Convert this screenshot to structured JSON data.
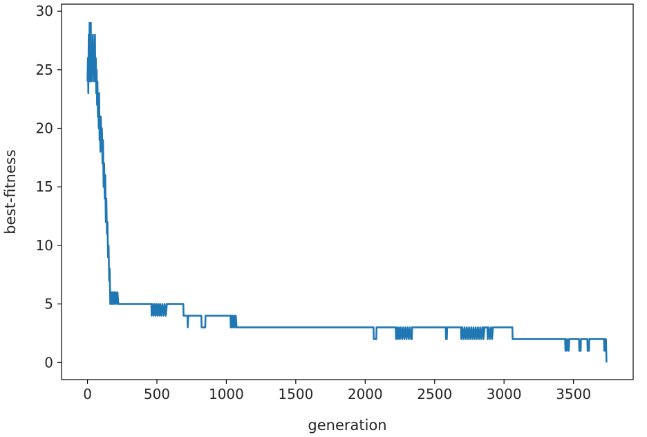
{
  "chart_data": {
    "type": "line",
    "title": "",
    "xlabel": "generation",
    "ylabel": "best-fitness",
    "xlim": [
      -187,
      3930
    ],
    "ylim": [
      -1.46,
      30.6
    ],
    "x_ticks": [
      0,
      500,
      1000,
      1500,
      2000,
      2500,
      3000,
      3500
    ],
    "x_tick_labels": [
      "0",
      "500",
      "1000",
      "1500",
      "2000",
      "2500",
      "3000",
      "3500"
    ],
    "y_ticks": [
      0,
      5,
      10,
      15,
      20,
      25,
      30
    ],
    "y_tick_labels": [
      "0",
      "5",
      "10",
      "15",
      "20",
      "25",
      "30"
    ],
    "grid": false,
    "legend": "none",
    "line_color": "#1f77b4",
    "series": [
      {
        "points": [
          [
            0,
            24
          ],
          [
            3,
            26
          ],
          [
            6,
            23
          ],
          [
            9,
            28
          ],
          [
            12,
            25
          ],
          [
            15,
            29
          ],
          [
            18,
            24
          ],
          [
            21,
            27
          ],
          [
            24,
            29
          ],
          [
            27,
            25
          ],
          [
            30,
            24
          ],
          [
            33,
            27
          ],
          [
            36,
            25
          ],
          [
            39,
            28
          ],
          [
            42,
            26
          ],
          [
            45,
            24
          ],
          [
            48,
            27
          ],
          [
            51,
            25
          ],
          [
            54,
            28
          ],
          [
            57,
            24
          ],
          [
            60,
            26
          ],
          [
            63,
            23
          ],
          [
            66,
            25
          ],
          [
            69,
            22
          ],
          [
            72,
            24
          ],
          [
            75,
            21
          ],
          [
            78,
            23
          ],
          [
            81,
            20
          ],
          [
            84,
            23
          ],
          [
            87,
            19
          ],
          [
            90,
            21
          ],
          [
            93,
            18
          ],
          [
            96,
            21
          ],
          [
            100,
            19
          ],
          [
            104,
            20
          ],
          [
            108,
            17
          ],
          [
            112,
            19
          ],
          [
            116,
            15
          ],
          [
            120,
            17
          ],
          [
            124,
            14
          ],
          [
            128,
            16
          ],
          [
            132,
            12
          ],
          [
            136,
            14
          ],
          [
            140,
            11
          ],
          [
            144,
            12
          ],
          [
            148,
            9
          ],
          [
            152,
            10
          ],
          [
            156,
            7
          ],
          [
            160,
            8
          ],
          [
            164,
            5
          ],
          [
            168,
            6
          ],
          [
            172,
            5
          ],
          [
            176,
            6
          ],
          [
            180,
            5
          ],
          [
            184,
            6
          ],
          [
            188,
            5
          ],
          [
            194,
            6
          ],
          [
            198,
            5
          ],
          [
            204,
            6
          ],
          [
            210,
            5
          ],
          [
            216,
            6
          ],
          [
            222,
            5
          ],
          [
            300,
            5
          ],
          [
            460,
            5
          ],
          [
            462,
            4
          ],
          [
            468,
            5
          ],
          [
            476,
            4
          ],
          [
            482,
            5
          ],
          [
            490,
            4
          ],
          [
            496,
            5
          ],
          [
            504,
            4
          ],
          [
            510,
            5
          ],
          [
            518,
            4
          ],
          [
            524,
            5
          ],
          [
            532,
            4
          ],
          [
            540,
            5
          ],
          [
            548,
            4
          ],
          [
            556,
            5
          ],
          [
            564,
            4
          ],
          [
            572,
            5
          ],
          [
            580,
            5
          ],
          [
            690,
            5
          ],
          [
            692,
            4
          ],
          [
            720,
            4
          ],
          [
            722,
            3
          ],
          [
            726,
            4
          ],
          [
            820,
            4
          ],
          [
            822,
            3
          ],
          [
            848,
            3
          ],
          [
            850,
            4
          ],
          [
            1030,
            4
          ],
          [
            1032,
            3
          ],
          [
            1036,
            4
          ],
          [
            1040,
            3
          ],
          [
            1044,
            4
          ],
          [
            1050,
            3
          ],
          [
            1056,
            4
          ],
          [
            1062,
            3
          ],
          [
            1068,
            4
          ],
          [
            1074,
            3
          ],
          [
            1080,
            3
          ],
          [
            1100,
            3
          ],
          [
            2060,
            3
          ],
          [
            2062,
            2
          ],
          [
            2080,
            2
          ],
          [
            2082,
            3
          ],
          [
            2220,
            3
          ],
          [
            2222,
            2
          ],
          [
            2230,
            3
          ],
          [
            2236,
            2
          ],
          [
            2244,
            3
          ],
          [
            2250,
            2
          ],
          [
            2258,
            3
          ],
          [
            2266,
            2
          ],
          [
            2274,
            3
          ],
          [
            2282,
            2
          ],
          [
            2290,
            3
          ],
          [
            2298,
            2
          ],
          [
            2306,
            3
          ],
          [
            2314,
            2
          ],
          [
            2322,
            3
          ],
          [
            2330,
            2
          ],
          [
            2336,
            2
          ],
          [
            2338,
            3
          ],
          [
            2580,
            3
          ],
          [
            2582,
            2
          ],
          [
            2588,
            2
          ],
          [
            2590,
            3
          ],
          [
            2690,
            3
          ],
          [
            2692,
            2
          ],
          [
            2700,
            3
          ],
          [
            2708,
            2
          ],
          [
            2716,
            3
          ],
          [
            2724,
            2
          ],
          [
            2732,
            3
          ],
          [
            2740,
            2
          ],
          [
            2748,
            3
          ],
          [
            2756,
            2
          ],
          [
            2764,
            3
          ],
          [
            2772,
            2
          ],
          [
            2780,
            3
          ],
          [
            2788,
            2
          ],
          [
            2796,
            3
          ],
          [
            2804,
            2
          ],
          [
            2812,
            3
          ],
          [
            2820,
            2
          ],
          [
            2828,
            3
          ],
          [
            2836,
            2
          ],
          [
            2844,
            3
          ],
          [
            2850,
            3
          ],
          [
            2852,
            2
          ],
          [
            2860,
            3
          ],
          [
            2880,
            3
          ],
          [
            2882,
            2
          ],
          [
            2890,
            3
          ],
          [
            2898,
            2
          ],
          [
            2906,
            3
          ],
          [
            2914,
            2
          ],
          [
            2920,
            3
          ],
          [
            3060,
            3
          ],
          [
            3062,
            2
          ],
          [
            3440,
            2
          ],
          [
            3442,
            1
          ],
          [
            3446,
            2
          ],
          [
            3452,
            1
          ],
          [
            3460,
            2
          ],
          [
            3466,
            1
          ],
          [
            3470,
            2
          ],
          [
            3540,
            2
          ],
          [
            3542,
            1
          ],
          [
            3552,
            1
          ],
          [
            3554,
            2
          ],
          [
            3600,
            2
          ],
          [
            3602,
            1
          ],
          [
            3612,
            1
          ],
          [
            3614,
            2
          ],
          [
            3720,
            2
          ],
          [
            3722,
            1
          ],
          [
            3726,
            2
          ],
          [
            3730,
            1
          ],
          [
            3734,
            2
          ],
          [
            3736,
            1
          ],
          [
            3738,
            0
          ]
        ]
      }
    ]
  }
}
